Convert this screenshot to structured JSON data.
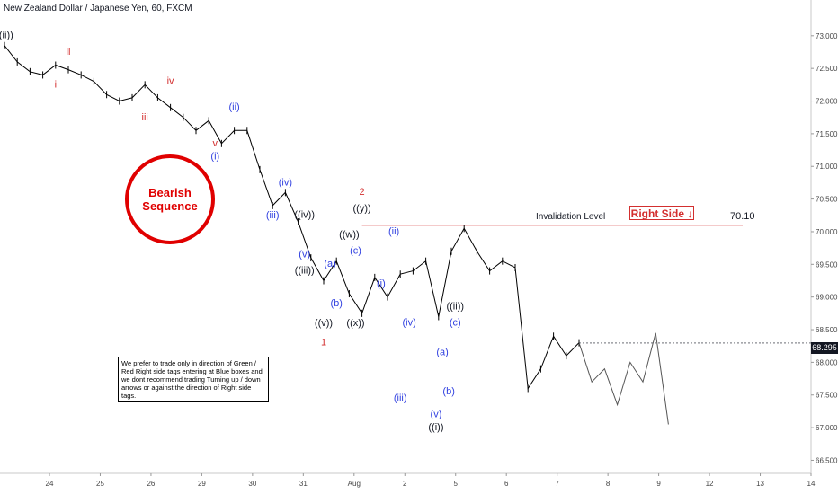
{
  "header": {
    "title": "New Zealand Dollar / Japanese Yen, 60, FXCM"
  },
  "colors": {
    "red": "#d32f2f",
    "blue": "#2f3fe0",
    "black": "#131722",
    "grey": "#888888",
    "circle": "#e00000"
  },
  "annotations": {
    "bearish_line1": "Bearish",
    "bearish_line2": "Sequence",
    "invalidation_label": "Invalidation Level",
    "invalidation_value": "70.10",
    "right_side_label": "Right Side",
    "right_side_arrow": "↓",
    "note": "We prefer to trade only in direction of Green / Red Right side tags entering at Blue boxes and we dont recommend trading Turning up / down arrows or against the direction of Right side tags.",
    "last_price": "68.295"
  },
  "chart_data": {
    "type": "line",
    "title": "New Zealand Dollar / Japanese Yen, 60, FXCM",
    "x_tick_labels": [
      "24",
      "25",
      "26",
      "29",
      "30",
      "31",
      "Aug",
      "2",
      "5",
      "6",
      "7",
      "8",
      "9",
      "12",
      "13",
      "14"
    ],
    "y_tick_labels": [
      "73.000",
      "72.500",
      "72.000",
      "71.500",
      "71.000",
      "70.500",
      "70.000",
      "69.500",
      "69.000",
      "68.500",
      "68.000",
      "67.500",
      "67.000",
      "66.500"
    ],
    "ylim": [
      66.3,
      73.3
    ],
    "series": [
      {
        "points": [
          [
            0,
            72.85
          ],
          [
            1,
            72.6
          ],
          [
            2,
            72.45
          ],
          [
            3,
            72.4
          ],
          [
            4,
            72.55
          ],
          [
            5,
            72.48
          ],
          [
            6,
            72.4
          ],
          [
            7,
            72.3
          ],
          [
            8,
            72.1
          ],
          [
            9,
            72.0
          ],
          [
            10,
            72.05
          ],
          [
            11,
            72.25
          ],
          [
            12,
            72.05
          ],
          [
            13,
            71.9
          ],
          [
            14,
            71.75
          ],
          [
            15,
            71.55
          ],
          [
            16,
            71.7
          ],
          [
            17,
            71.35
          ],
          [
            18,
            71.55
          ],
          [
            19,
            71.55
          ],
          [
            20,
            70.95
          ],
          [
            21,
            70.4
          ],
          [
            22,
            70.6
          ],
          [
            23,
            70.15
          ],
          [
            24,
            69.6
          ],
          [
            25,
            69.25
          ],
          [
            26,
            69.55
          ],
          [
            27,
            69.05
          ],
          [
            28,
            68.75
          ],
          [
            29,
            69.3
          ],
          [
            30,
            69.0
          ],
          [
            31,
            69.35
          ],
          [
            32,
            69.4
          ],
          [
            33,
            69.55
          ],
          [
            34,
            68.7
          ],
          [
            35,
            69.7
          ],
          [
            36,
            70.05
          ],
          [
            37,
            69.7
          ],
          [
            38,
            69.4
          ],
          [
            39,
            69.55
          ],
          [
            40,
            69.45
          ],
          [
            41,
            67.6
          ],
          [
            42,
            67.9
          ],
          [
            43,
            68.4
          ],
          [
            44,
            68.1
          ],
          [
            45,
            68.3
          ]
        ]
      },
      {
        "name": "projection",
        "points": [
          [
            45,
            68.3
          ],
          [
            46,
            67.7
          ],
          [
            47,
            67.9
          ],
          [
            48,
            67.35
          ],
          [
            49,
            68.0
          ],
          [
            50,
            67.7
          ],
          [
            51,
            68.45
          ],
          [
            52,
            67.05
          ]
        ]
      }
    ],
    "waves": [
      {
        "label": "((ii))",
        "x": 0,
        "y": 72.85,
        "color": "black",
        "pos": "above"
      },
      {
        "label": "i",
        "x": 4,
        "y": 72.4,
        "color": "red",
        "pos": "below"
      },
      {
        "label": "ii",
        "x": 5,
        "y": 72.6,
        "color": "red",
        "pos": "above"
      },
      {
        "label": "iii",
        "x": 11,
        "y": 71.9,
        "color": "red",
        "pos": "below"
      },
      {
        "label": "iv",
        "x": 13,
        "y": 72.15,
        "color": "red",
        "pos": "above"
      },
      {
        "label": "v",
        "x": 16.5,
        "y": 71.5,
        "color": "red",
        "pos": "below"
      },
      {
        "label": "(i)",
        "x": 16.5,
        "y": 71.3,
        "color": "blue",
        "pos": "below"
      },
      {
        "label": "(ii)",
        "x": 18,
        "y": 71.75,
        "color": "blue",
        "pos": "above"
      },
      {
        "label": "(iii)",
        "x": 21,
        "y": 70.4,
        "color": "blue",
        "pos": "below"
      },
      {
        "label": "(iv)",
        "x": 22,
        "y": 70.6,
        "color": "blue",
        "pos": "above"
      },
      {
        "label": "(v)",
        "x": 23.5,
        "y": 69.8,
        "color": "blue",
        "pos": "below"
      },
      {
        "label": "((iii))",
        "x": 23.5,
        "y": 69.55,
        "color": "black",
        "pos": "below"
      },
      {
        "label": "((iv))",
        "x": 23.5,
        "y": 70.1,
        "color": "black",
        "pos": "above"
      },
      {
        "label": "(a)",
        "x": 25.5,
        "y": 69.35,
        "color": "blue",
        "pos": "above"
      },
      {
        "label": "(b)",
        "x": 26,
        "y": 69.05,
        "color": "blue",
        "pos": "below"
      },
      {
        "label": "((v))",
        "x": 25,
        "y": 68.75,
        "color": "black",
        "pos": "below"
      },
      {
        "label": "1",
        "x": 25,
        "y": 68.45,
        "color": "red",
        "pos": "below"
      },
      {
        "label": "(c)",
        "x": 27.5,
        "y": 69.55,
        "color": "blue",
        "pos": "above"
      },
      {
        "label": "((w))",
        "x": 27,
        "y": 69.8,
        "color": "black",
        "pos": "above"
      },
      {
        "label": "((x))",
        "x": 27.5,
        "y": 68.75,
        "color": "black",
        "pos": "below"
      },
      {
        "label": "((y))",
        "x": 28,
        "y": 70.2,
        "color": "black",
        "pos": "above"
      },
      {
        "label": "2",
        "x": 28,
        "y": 70.45,
        "color": "red",
        "pos": "above"
      },
      {
        "label": "(ii)",
        "x": 30.5,
        "y": 69.85,
        "color": "blue",
        "pos": "above"
      },
      {
        "label": "(i)",
        "x": 29.5,
        "y": 69.35,
        "color": "blue",
        "pos": "below"
      },
      {
        "label": "(iii)",
        "x": 31,
        "y": 67.6,
        "color": "blue",
        "pos": "below"
      },
      {
        "label": "(iv)",
        "x": 31.7,
        "y": 68.45,
        "color": "blue",
        "pos": "above"
      },
      {
        "label": "(a)",
        "x": 34.3,
        "y": 68.0,
        "color": "blue",
        "pos": "above"
      },
      {
        "label": "(b)",
        "x": 34.8,
        "y": 67.7,
        "color": "blue",
        "pos": "below"
      },
      {
        "label": "(v)",
        "x": 33.8,
        "y": 67.35,
        "color": "blue",
        "pos": "below"
      },
      {
        "label": "((i))",
        "x": 33.8,
        "y": 67.15,
        "color": "black",
        "pos": "below"
      },
      {
        "label": "(c)",
        "x": 35.3,
        "y": 68.45,
        "color": "blue",
        "pos": "above"
      },
      {
        "label": "((ii))",
        "x": 35.3,
        "y": 68.7,
        "color": "black",
        "pos": "above"
      }
    ],
    "invalidation_level": 70.1,
    "last_price": 68.295
  }
}
